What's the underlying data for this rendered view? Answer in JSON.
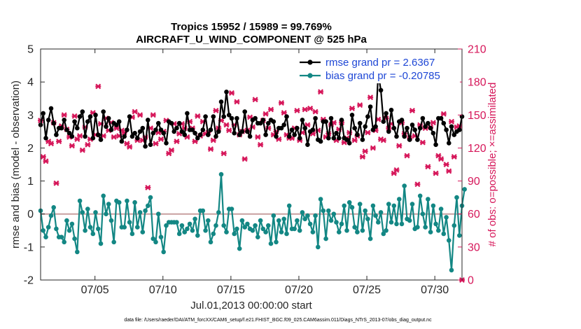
{
  "chart_data": {
    "type": "line",
    "title": "Tropics 15952 / 15989 = 99.769%",
    "subtitle": "AIRCRAFT_U_WIND_COMPONENT @ 525 hPa",
    "xlabel": "Jul.01,2013 00:00:00 start",
    "ylabel_left": "rmse and bias (model - observation)",
    "ylabel_right": "# of obs: o=possible; ×=assimilated",
    "footnote": "data file: /Users/raeder/DAI/ATM_forcXX/CAM6_setup/f.e21.FHIST_BGC.f09_025.CAM6assim.011/Diags_NTrS_2013-07/obs_diag_output.nc",
    "xlim": [
      1,
      32
    ],
    "ylim_left": [
      -2,
      5
    ],
    "ylim_right": [
      0,
      210
    ],
    "x_ticks": [
      5,
      10,
      15,
      20,
      25,
      30
    ],
    "x_tick_labels": [
      "07/05",
      "07/10",
      "07/15",
      "07/20",
      "07/25",
      "07/30"
    ],
    "y_ticks_left": [
      "-2",
      "-1",
      "0",
      "1",
      "2",
      "3",
      "4",
      "5"
    ],
    "y_ticks_right": [
      "0",
      "30",
      "60",
      "90",
      "120",
      "150",
      "180",
      "210"
    ],
    "colors": {
      "rmse": "#000000",
      "bias": "#138784",
      "obs": "#d6175a",
      "zero_line": "#c8a0a0",
      "legend_text": "#1e47d6"
    },
    "series": [
      {
        "name": "rmse grand pr = 2.6367",
        "axis": "left",
        "values": [
          2.7,
          3.05,
          2.3,
          2.85,
          3.2,
          2.75,
          2.4,
          2.6,
          2.6,
          2.85,
          2.55,
          2.45,
          2.35,
          2.8,
          2.6,
          2.95,
          3.1,
          2.35,
          2.8,
          2.95,
          2.3,
          3.0,
          2.4,
          2.25,
          3.1,
          2.65,
          2.9,
          2.55,
          2.75,
          2.7,
          2.8,
          2.2,
          2.35,
          2.55,
          2.95,
          2.35,
          2.45,
          2.3,
          2.5,
          2.6,
          2.05,
          2.85,
          2.1,
          2.45,
          2.55,
          2.75,
          2.55,
          2.45,
          2.15,
          2.8,
          2.75,
          2.5,
          2.6,
          2.75,
          2.5,
          2.4,
          3.05,
          2.55,
          2.55,
          2.45,
          2.3,
          2.4,
          2.55,
          2.95,
          2.4,
          2.55,
          2.95,
          2.35,
          2.5,
          3.4,
          2.95,
          3.7,
          3.0,
          2.9,
          2.45,
          2.9,
          2.4,
          2.5,
          3.1,
          2.5,
          2.35,
          2.85,
          2.9,
          2.75,
          2.75,
          2.85,
          2.4,
          2.75,
          2.85,
          2.8,
          2.35,
          2.6,
          2.6,
          2.7,
          2.95,
          2.35,
          2.55,
          2.4,
          2.6,
          2.3,
          2.85,
          2.6,
          2.1,
          2.5,
          2.55,
          2.9,
          2.25,
          2.2,
          2.8,
          2.8,
          2.3,
          2.9,
          2.3,
          2.45,
          2.3,
          2.85,
          2.3,
          2.25,
          2.15,
          3.0,
          2.6,
          2.4,
          2.75,
          2.25,
          2.65,
          2.95,
          3.25,
          2.55,
          2.65,
          4.25,
          3.75,
          2.8,
          3.05,
          2.5,
          3.15,
          2.6,
          2.35,
          2.8,
          2.85,
          2.35,
          2.6,
          2.25,
          2.7,
          2.55,
          2.25,
          2.6,
          2.9,
          2.65,
          2.75,
          2.6,
          2.45,
          2.1,
          2.9,
          2.9,
          2.75,
          2.55,
          2.15,
          2.65,
          2.4,
          2.5,
          2.55,
          2.95
        ]
      },
      {
        "name": "bias grand pr = -0.20785",
        "axis": "left",
        "values": [
          0.1,
          -0.5,
          -0.7,
          -0.4,
          -0.05,
          0.2,
          -0.45,
          -0.7,
          -0.7,
          -0.85,
          -0.2,
          -0.5,
          -0.3,
          -0.75,
          -1.15,
          0.4,
          0.05,
          -0.5,
          0.15,
          -0.4,
          -0.6,
          0.05,
          -0.45,
          -0.9,
          0.55,
          0.0,
          0.3,
          -0.2,
          -0.85,
          0.4,
          0.35,
          -0.4,
          -0.4,
          0.4,
          -0.25,
          -0.6,
          0.35,
          -0.4,
          0.05,
          -0.55,
          0.1,
          0.25,
          0.5,
          -0.75,
          -0.85,
          0.0,
          -0.7,
          -1.15,
          -0.35,
          -0.25,
          -0.25,
          -0.25,
          -0.25,
          -0.6,
          -0.35,
          -0.55,
          -0.45,
          -0.3,
          -0.5,
          -0.15,
          -0.65,
          0.1,
          0.1,
          -0.5,
          -0.2,
          -0.85,
          -0.6,
          -0.35,
          0.05,
          1.2,
          -0.35,
          -0.55,
          0.15,
          0.15,
          -0.6,
          -0.45,
          -1.05,
          -0.2,
          -0.4,
          -0.3,
          -0.45,
          -0.5,
          -0.35,
          -0.7,
          -0.2,
          -0.45,
          -0.55,
          -0.35,
          -0.9,
          -0.05,
          -0.85,
          -0.2,
          -0.55,
          -0.15,
          -0.6,
          0.25,
          -0.45,
          -0.45,
          -0.2,
          -0.5,
          0.05,
          -0.15,
          -0.05,
          -0.3,
          -0.55,
          -0.05,
          -1.0,
          0.45,
          0.1,
          -0.75,
          0.1,
          -0.2,
          0.0,
          -0.25,
          -0.55,
          -0.3,
          0.25,
          -0.5,
          0.35,
          0.2,
          -0.4,
          -0.55,
          0.3,
          -0.5,
          0.1,
          -0.15,
          -0.75,
          0.25,
          -0.05,
          -0.25,
          0.05,
          -0.6,
          -0.5,
          0.3,
          -0.25,
          0.25,
          -0.3,
          0.45,
          -0.3,
          0.85,
          -0.15,
          -0.2,
          0.3,
          -0.45,
          -0.4,
          0.55,
          0.0,
          -0.4,
          0.45,
          -0.55,
          0.25,
          -0.3,
          -0.5,
          0.15,
          -0.6,
          -0.1,
          -0.8,
          -1.7,
          -0.35,
          0.5,
          -0.65,
          0.25,
          0.75
        ]
      },
      {
        "name": "obs possible / assimilated",
        "axis": "right",
        "values": [
          145,
          112,
          108,
          126,
          124,
          143,
          88,
          126,
          140,
          150,
          137,
          130,
          122,
          149,
          128,
          131,
          118,
          139,
          123,
          128,
          152,
          132,
          176,
          142,
          131,
          147,
          136,
          143,
          130,
          138,
          131,
          136,
          134,
          124,
          121,
          148,
          153,
          127,
          150,
          127,
          130,
          84,
          138,
          150,
          124,
          134,
          128,
          135,
          145,
          115,
          118,
          142,
          126,
          133,
          142,
          138,
          130,
          144,
          138,
          126,
          149,
          131,
          144,
          133,
          134,
          119,
          127,
          154,
          138,
          145,
          115,
          141,
          136,
          170,
          141,
          162,
          132,
          135,
          110,
          136,
          148,
          139,
          164,
          130,
          123,
          145,
          151,
          138,
          155,
          132,
          135,
          128,
          161,
          152,
          132,
          129,
          129,
          138,
          154,
          127,
          134,
          155,
          141,
          156,
          133,
          153,
          136,
          171,
          146,
          130,
          133,
          141,
          143,
          127,
          137,
          143,
          125,
          129,
          134,
          156,
          127,
          131,
          159,
          112,
          117,
          134,
          166,
          120,
          136,
          146,
          128,
          127,
          147,
          138,
          142,
          97,
          100,
          122,
          143,
          133,
          113,
          129,
          154,
          131,
          87,
          141,
          125,
          138,
          103,
          139,
          143,
          97,
          113,
          110,
          151,
          105,
          99,
          144,
          112,
          139,
          140,
          0
        ]
      }
    ]
  }
}
